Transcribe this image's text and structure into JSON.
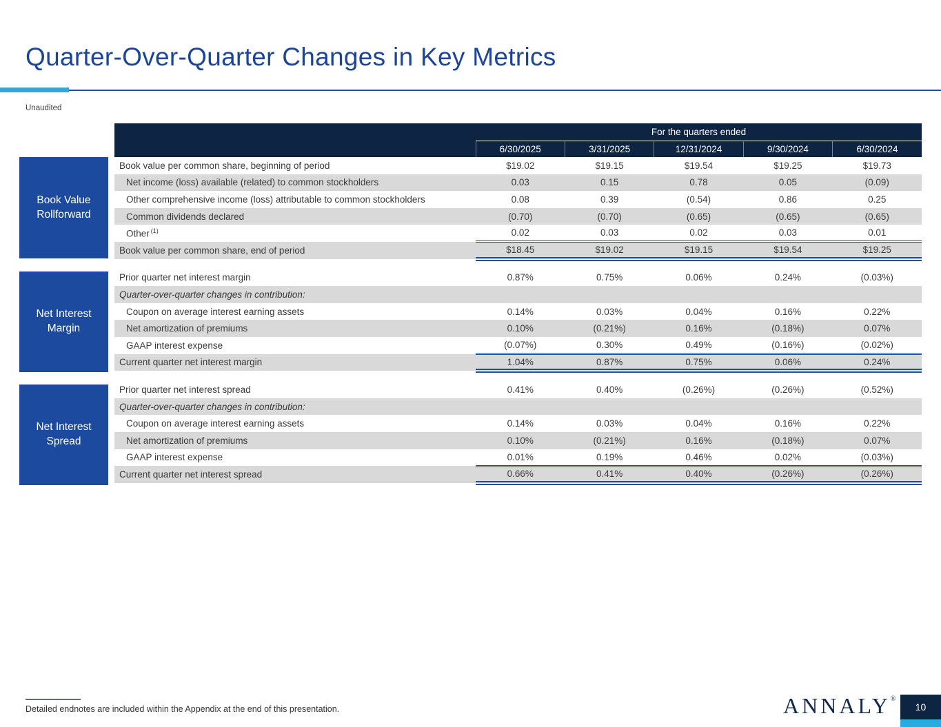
{
  "page": {
    "title": "Quarter-Over-Quarter Changes in Key Metrics",
    "unaudited_label": "Unaudited",
    "footnote": "Detailed endnotes are included within the Appendix at the end of this presentation.",
    "logo_text": "ANNALY",
    "logo_registered_mark": "®",
    "page_number": "10"
  },
  "colors": {
    "accent_cyan": "#29ABE2",
    "header_navy": "#0E2443",
    "side_box_blue": "#1B4A9E",
    "title_blue": "#1C4599",
    "stripe_gray": "#D9D9D9",
    "total_rule_blue": "#1F4E9C"
  },
  "table": {
    "header_group_label": "For the quarters ended",
    "columns": [
      "6/30/2025",
      "3/31/2025",
      "12/31/2024",
      "9/30/2024",
      "6/30/2024"
    ],
    "sections": [
      {
        "side_label_line1": "Book Value",
        "side_label_line2": "Rollforward",
        "rows": [
          {
            "label": "Book value per common share, beginning of period",
            "style": "plain",
            "values": [
              "$19.02",
              "$19.15",
              "$19.54",
              "$19.25",
              "$19.73"
            ]
          },
          {
            "label": "Net income (loss) available (related) to common stockholders",
            "style": "indent",
            "values": [
              "0.03",
              "0.15",
              "0.78",
              "0.05",
              "(0.09)"
            ]
          },
          {
            "label": "Other comprehensive income (loss) attributable to common stockholders",
            "style": "indent",
            "values": [
              "0.08",
              "0.39",
              "(0.54)",
              "0.86",
              "0.25"
            ]
          },
          {
            "label": "Common dividends declared",
            "style": "indent",
            "values": [
              "(0.70)",
              "(0.70)",
              "(0.65)",
              "(0.65)",
              "(0.65)"
            ]
          },
          {
            "label": "Other",
            "sup": "(1)",
            "style": "indent",
            "values": [
              "0.02",
              "0.03",
              "0.02",
              "0.03",
              "0.01"
            ]
          },
          {
            "label": "Book value per common share, end of period",
            "style": "total",
            "values": [
              "$18.45",
              "$19.02",
              "$19.15",
              "$19.54",
              "$19.25"
            ]
          }
        ]
      },
      {
        "side_label_line1": "Net Interest",
        "side_label_line2": "Margin",
        "rows": [
          {
            "label": "Prior quarter net interest margin",
            "style": "plain",
            "values": [
              "0.87%",
              "0.75%",
              "0.06%",
              "0.24%",
              "(0.03%)"
            ]
          },
          {
            "label": "Quarter-over-quarter changes in contribution:",
            "style": "italic",
            "values": [
              "",
              "",
              "",
              "",
              ""
            ]
          },
          {
            "label": "Coupon on average interest earning assets",
            "style": "indent",
            "values": [
              "0.14%",
              "0.03%",
              "0.04%",
              "0.16%",
              "0.22%"
            ]
          },
          {
            "label": "Net amortization of premiums",
            "style": "indent",
            "values": [
              "0.10%",
              "(0.21%)",
              "0.16%",
              "(0.18%)",
              "0.07%"
            ]
          },
          {
            "label": "GAAP interest expense",
            "style": "indent",
            "values": [
              "(0.07%)",
              "0.30%",
              "0.49%",
              "(0.16%)",
              "(0.02%)"
            ]
          },
          {
            "label": "Current quarter net interest margin",
            "style": "total",
            "values": [
              "1.04%",
              "0.87%",
              "0.75%",
              "0.06%",
              "0.24%"
            ]
          }
        ]
      },
      {
        "side_label_line1": "Net Interest",
        "side_label_line2": "Spread",
        "rows": [
          {
            "label": "Prior quarter net interest spread",
            "style": "plain",
            "values": [
              "0.41%",
              "0.40%",
              "(0.26%)",
              "(0.26%)",
              "(0.52%)"
            ]
          },
          {
            "label": "Quarter-over-quarter changes in contribution:",
            "style": "italic",
            "values": [
              "",
              "",
              "",
              "",
              ""
            ]
          },
          {
            "label": "Coupon on average interest earning assets",
            "style": "indent",
            "values": [
              "0.14%",
              "0.03%",
              "0.04%",
              "0.16%",
              "0.22%"
            ]
          },
          {
            "label": "Net amortization of premiums",
            "style": "indent",
            "values": [
              "0.10%",
              "(0.21%)",
              "0.16%",
              "(0.18%)",
              "0.07%"
            ]
          },
          {
            "label": "GAAP interest expense",
            "style": "indent",
            "values": [
              "0.01%",
              "0.19%",
              "0.46%",
              "0.02%",
              "(0.03%)"
            ]
          },
          {
            "label": "Current quarter net interest spread",
            "style": "total",
            "values": [
              "0.66%",
              "0.41%",
              "0.40%",
              "(0.26%)",
              "(0.26%)"
            ]
          }
        ]
      }
    ]
  }
}
